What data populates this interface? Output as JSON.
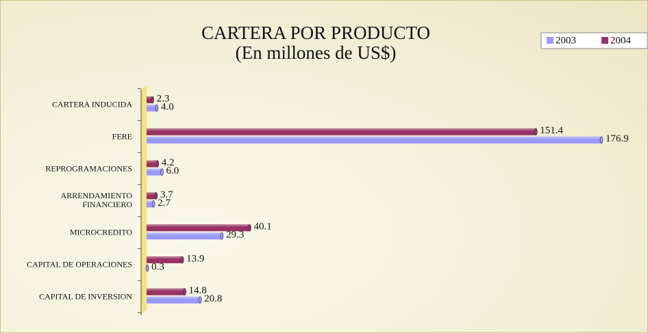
{
  "chart_data": {
    "type": "bar",
    "orientation": "horizontal",
    "title": "CARTERA POR PRODUCTO",
    "subtitle": "(En millones de US$)",
    "categories": [
      "CARTERA INDUCIDA",
      "FERE",
      "REPROGRAMACIONES",
      "ARRENDAMIENTO FINANCIERO",
      "MICROCREDITO",
      "CAPITAL DE OPERACIONES",
      "CAPITAL DE INVERSION"
    ],
    "series": [
      {
        "name": "2003",
        "color": "#9999ff",
        "values": [
          4.0,
          176.9,
          6.0,
          2.7,
          29.3,
          0.3,
          20.8
        ],
        "value_labels": [
          "4.0",
          "176.9",
          "6.0",
          "2.7",
          "29.3",
          "0.3",
          "20.8"
        ]
      },
      {
        "name": "2004",
        "color": "#993366",
        "values": [
          2.3,
          151.4,
          4.2,
          3.7,
          40.1,
          13.9,
          14.8
        ],
        "value_labels": [
          "2.3",
          "151.4",
          "4.2",
          "3.7",
          "40.1",
          "13.9",
          "14.8"
        ]
      }
    ],
    "legend": "top-right"
  }
}
